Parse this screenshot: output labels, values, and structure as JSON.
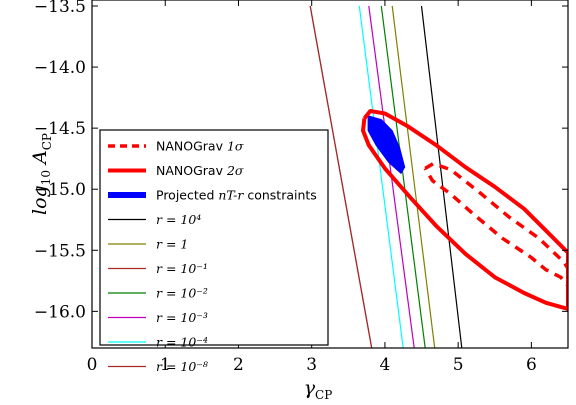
{
  "chart_data": {
    "type": "line",
    "xlabel": "γ_CP",
    "ylabel": "log10 A_CP",
    "xlim": [
      0,
      6.5
    ],
    "ylim": [
      -16.3,
      -13.5
    ],
    "xticks": [
      "0",
      "1",
      "2",
      "3",
      "4",
      "5",
      "6"
    ],
    "xtick_values": [
      0,
      1,
      2,
      3,
      4,
      5,
      6
    ],
    "yticks": [
      "−13.5",
      "−14.0",
      "−14.5",
      "−15.0",
      "−15.5",
      "−16.0"
    ],
    "ytick_values": [
      -13.5,
      -14.0,
      -14.5,
      -15.0,
      -15.5,
      -16.0
    ],
    "legend_placement": "lower-left",
    "series": [
      {
        "name": "NANOGrav 1σ",
        "legend_text": "NANOGrav ",
        "legend_math": "1σ",
        "style": "dashed",
        "color": "#ff0000",
        "points": [
          [
            4.55,
            -14.83
          ],
          [
            4.66,
            -14.79
          ],
          [
            4.9,
            -14.84
          ],
          [
            5.3,
            -15.03
          ],
          [
            5.7,
            -15.23
          ],
          [
            6.1,
            -15.4
          ],
          [
            6.45,
            -15.6
          ],
          [
            6.5,
            -15.65
          ],
          [
            6.5,
            -15.79
          ],
          [
            6.4,
            -15.72
          ],
          [
            6.2,
            -15.66
          ],
          [
            6.0,
            -15.56
          ],
          [
            5.6,
            -15.4
          ],
          [
            5.2,
            -15.2
          ],
          [
            4.9,
            -15.04
          ],
          [
            4.65,
            -14.93
          ],
          [
            4.55,
            -14.83
          ]
        ]
      },
      {
        "name": "NANOGrav 2σ",
        "legend_text": "NANOGrav ",
        "legend_math": "2σ",
        "style": "solid",
        "color": "#ff0000",
        "points": [
          [
            3.72,
            -14.42
          ],
          [
            3.8,
            -14.36
          ],
          [
            4.0,
            -14.38
          ],
          [
            4.3,
            -14.48
          ],
          [
            4.7,
            -14.64
          ],
          [
            5.1,
            -14.82
          ],
          [
            5.5,
            -14.98
          ],
          [
            5.9,
            -15.16
          ],
          [
            6.3,
            -15.4
          ],
          [
            6.5,
            -15.52
          ],
          [
            6.5,
            -15.98
          ],
          [
            6.2,
            -15.93
          ],
          [
            5.9,
            -15.85
          ],
          [
            5.5,
            -15.72
          ],
          [
            5.1,
            -15.53
          ],
          [
            4.7,
            -15.3
          ],
          [
            4.35,
            -15.07
          ],
          [
            4.0,
            -14.83
          ],
          [
            3.78,
            -14.64
          ],
          [
            3.7,
            -14.52
          ],
          [
            3.72,
            -14.42
          ]
        ]
      },
      {
        "name": "Projected n_T-r constraints",
        "legend_text": "Projected ",
        "legend_math": "nT-r",
        "legend_suffix": " constraints",
        "style": "fill",
        "color": "#0000ff",
        "points": [
          [
            3.77,
            -14.4
          ],
          [
            3.95,
            -14.43
          ],
          [
            4.1,
            -14.52
          ],
          [
            4.2,
            -14.66
          ],
          [
            4.27,
            -14.82
          ],
          [
            4.22,
            -14.87
          ],
          [
            4.05,
            -14.78
          ],
          [
            3.88,
            -14.64
          ],
          [
            3.77,
            -14.52
          ],
          [
            3.77,
            -14.4
          ]
        ]
      },
      {
        "name": "r = 10^4",
        "legend_math": "r = 10⁴",
        "style": "solid",
        "color": "#000000",
        "points": [
          [
            4.5,
            -13.5
          ],
          [
            5.05,
            -16.3
          ]
        ]
      },
      {
        "name": "r = 1",
        "legend_math": "r = 1",
        "style": "solid",
        "color": "#808000",
        "points": [
          [
            4.1,
            -13.5
          ],
          [
            4.68,
            -16.3
          ]
        ]
      },
      {
        "name": "r = 10^-1",
        "legend_math": "r = 10⁻¹",
        "style": "solid",
        "color": "#a52a2a",
        "points": [
          [
            2.98,
            -13.5
          ],
          [
            3.82,
            -16.3
          ]
        ]
      },
      {
        "name": "r = 10^-2",
        "legend_math": "r = 10⁻²",
        "style": "solid",
        "color": "#008000",
        "points": [
          [
            3.95,
            -13.5
          ],
          [
            4.55,
            -16.3
          ]
        ]
      },
      {
        "name": "r = 10^-3",
        "legend_math": "r = 10⁻³",
        "style": "solid",
        "color": "#bf00bf",
        "points": [
          [
            3.78,
            -13.5
          ],
          [
            4.4,
            -16.3
          ]
        ]
      },
      {
        "name": "r = 10^-4",
        "legend_math": "r = 10⁻⁴",
        "style": "solid",
        "color": "#00ffff",
        "points": [
          [
            3.65,
            -13.5
          ],
          [
            4.25,
            -16.3
          ]
        ]
      },
      {
        "name": "r = 10^-8",
        "legend_math": "r = 10⁻⁸",
        "style": "solid",
        "color": "#a52a2a",
        "points": [
          [
            2.98,
            -13.5
          ],
          [
            3.82,
            -16.3
          ]
        ]
      }
    ]
  }
}
